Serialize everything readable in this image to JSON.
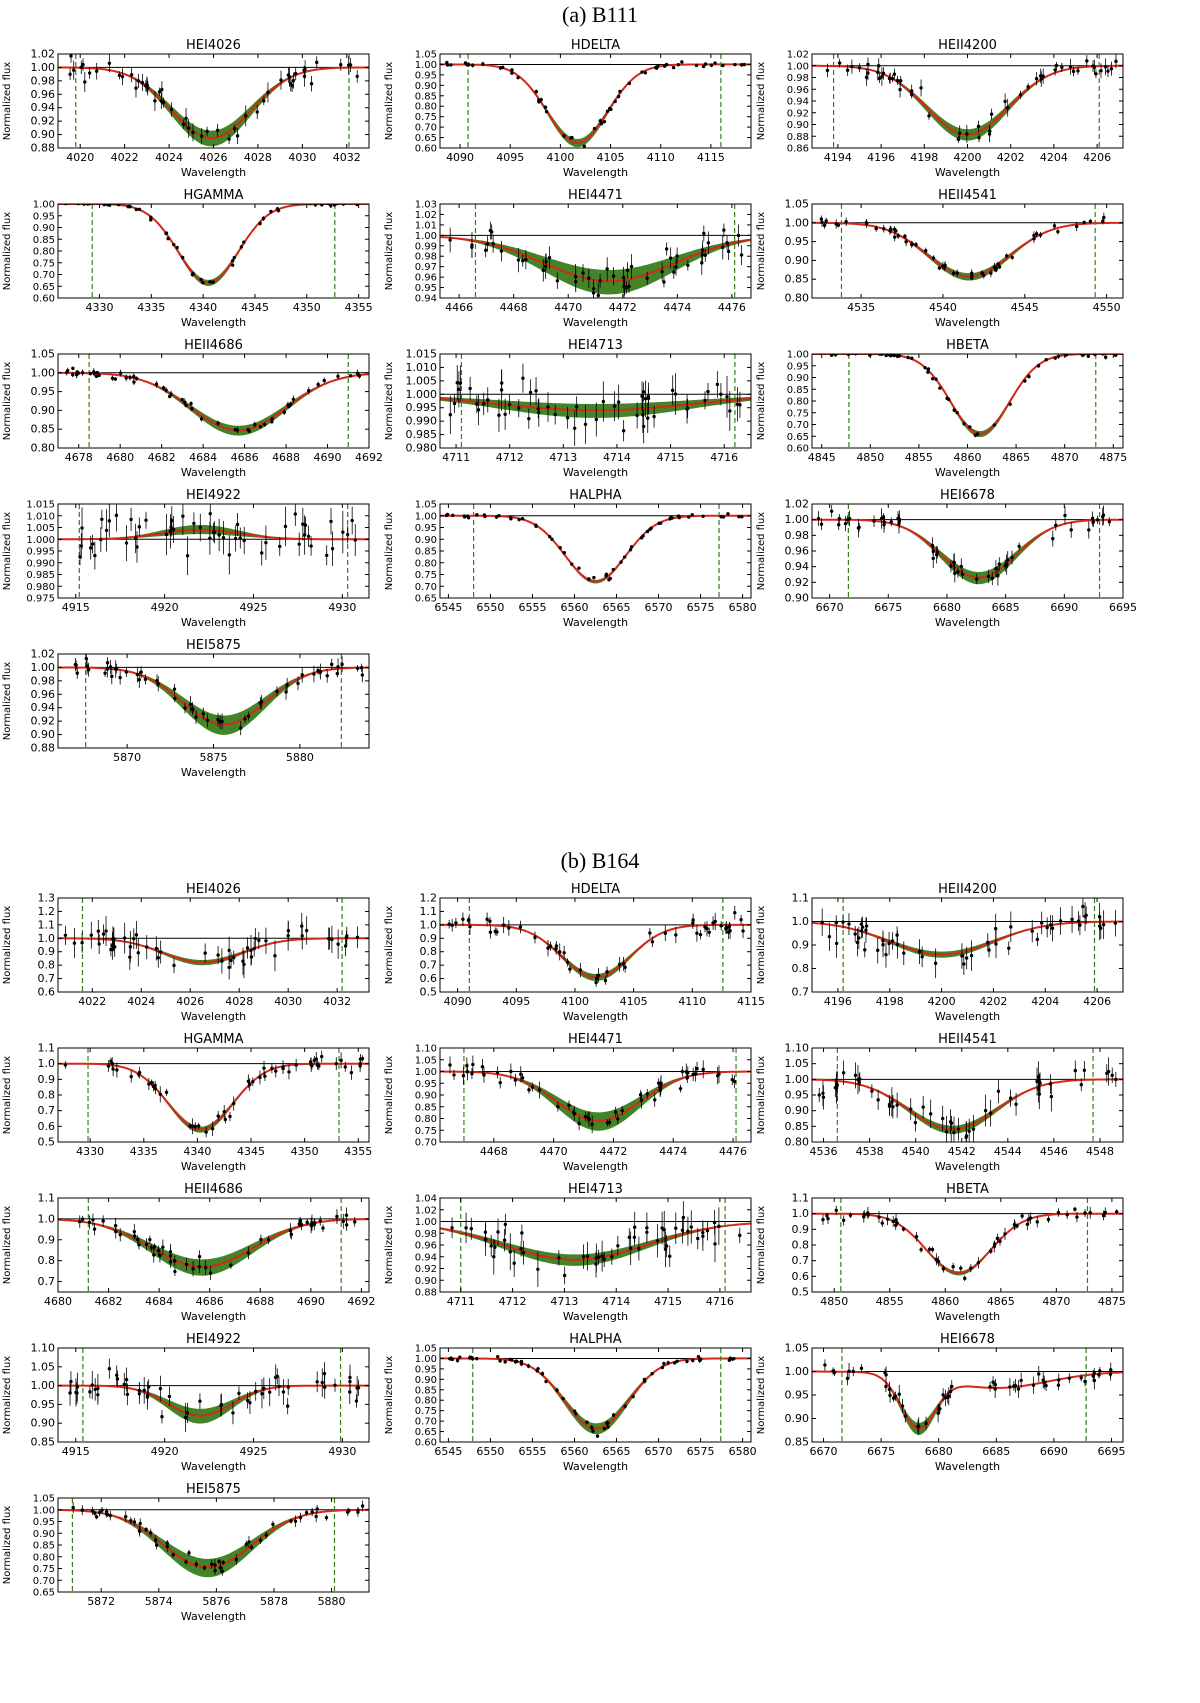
{
  "sections": [
    {
      "title": "(a) B111"
    },
    {
      "title": "(b) B164"
    }
  ],
  "common": {
    "xlabel": "Wavelength",
    "ylabel": "Normalized flux"
  },
  "colors": {
    "model_band": "#3a7d1e",
    "best_fit": "#d62718",
    "continuum": "#000000",
    "limit_line": "#3a7d1e",
    "data": "#000000"
  },
  "chart_data": [
    {
      "type": "line",
      "section": "(a) B111",
      "title": "HEI4026",
      "xlabel": "Wavelength",
      "ylabel": "Normalized flux",
      "xlim": [
        4019,
        4033
      ],
      "xticks": [
        4020,
        4022,
        4024,
        4026,
        4028,
        4030,
        4032
      ],
      "ylim": [
        0.88,
        1.02
      ],
      "yticks": [
        "0.88",
        "0.90",
        "0.92",
        "0.94",
        "0.96",
        "0.98",
        "1.00",
        "1.02"
      ],
      "center": 4025.9,
      "depth": 0.105,
      "sigma": 1.8,
      "band": 0.018,
      "vlines": [
        4019.8,
        4032.1
      ],
      "noise": 0.012,
      "seed": 11
    },
    {
      "type": "line",
      "section": "(a) B111",
      "title": "HDELTA",
      "xlabel": "Wavelength",
      "ylabel": "Normalized flux",
      "xlim": [
        4088,
        4119
      ],
      "xticks": [
        4090,
        4095,
        4100,
        4105,
        4110,
        4115
      ],
      "ylim": [
        0.6,
        1.05
      ],
      "yticks": [
        "0.60",
        "0.65",
        "0.70",
        "0.75",
        "0.80",
        "0.85",
        "0.90",
        "0.95",
        "1.00",
        "1.05"
      ],
      "center": 4101.7,
      "depth": 0.375,
      "sigma": 3.0,
      "band": 0.03,
      "vlines": [
        4090.8,
        4116.0
      ],
      "noise": 0.008,
      "seed": 12
    },
    {
      "type": "line",
      "section": "(a) B111",
      "title": "HEII4200",
      "xlabel": "Wavelength",
      "ylabel": "Normalized flux",
      "xlim": [
        4192.8,
        4207.2
      ],
      "xticks": [
        4194,
        4196,
        4198,
        4200,
        4202,
        4204,
        4206
      ],
      "ylim": [
        0.86,
        1.02
      ],
      "yticks": [
        "0.86",
        "0.88",
        "0.90",
        "0.92",
        "0.94",
        "0.96",
        "0.98",
        "1.00",
        "1.02"
      ],
      "center": 4200.0,
      "depth": 0.117,
      "sigma": 1.9,
      "band": 0.015,
      "vlines": [
        4193.8,
        4206.1
      ],
      "noise": 0.012,
      "seed": 13
    },
    {
      "type": "line",
      "section": "(a) B111",
      "title": "HGAMMA",
      "xlabel": "Wavelength",
      "ylabel": "Normalized flux",
      "xlim": [
        4326,
        4356
      ],
      "xticks": [
        4330,
        4335,
        4340,
        4345,
        4350,
        4355
      ],
      "ylim": [
        0.6,
        1.0
      ],
      "yticks": [
        "0.60",
        "0.65",
        "0.70",
        "0.75",
        "0.80",
        "0.85",
        "0.90",
        "0.95",
        "1.00"
      ],
      "center": 4340.5,
      "depth": 0.335,
      "sigma": 2.9,
      "band": 0.02,
      "vlines": [
        4329.3,
        4352.7
      ],
      "noise": 0.008,
      "seed": 14
    },
    {
      "type": "line",
      "section": "(a) B111",
      "title": "HEI4471",
      "xlabel": "Wavelength",
      "ylabel": "Normalized flux",
      "xlim": [
        4465.3,
        4476.7
      ],
      "xticks": [
        4466,
        4468,
        4470,
        4472,
        4474,
        4476
      ],
      "ylim": [
        0.94,
        1.03
      ],
      "yticks": [
        "0.94",
        "0.95",
        "0.96",
        "0.97",
        "0.98",
        "0.99",
        "1.00",
        "1.01",
        "1.02",
        "1.03"
      ],
      "center": 4471.5,
      "depth": 0.044,
      "sigma": 2.4,
      "band": 0.018,
      "vlines": [
        4466.6,
        4476.1
      ],
      "noise": 0.01,
      "seed": 15
    },
    {
      "type": "line",
      "section": "(a) B111",
      "title": "HEII4541",
      "xlabel": "Wavelength",
      "ylabel": "Normalized flux",
      "xlim": [
        4532,
        4551
      ],
      "xticks": [
        4535,
        4540,
        4545,
        4550
      ],
      "ylim": [
        0.8,
        1.05
      ],
      "yticks": [
        "0.80",
        "0.85",
        "0.90",
        "0.95",
        "1.00",
        "1.05"
      ],
      "center": 4541.6,
      "depth": 0.143,
      "sigma": 2.5,
      "band": 0.015,
      "vlines": [
        4533.8,
        4549.3
      ],
      "noise": 0.01,
      "seed": 16
    },
    {
      "type": "line",
      "section": "(a) B111",
      "title": "HEII4686",
      "xlabel": "Wavelength",
      "ylabel": "Normalized flux",
      "xlim": [
        4677,
        4692
      ],
      "xticks": [
        4678,
        4680,
        4682,
        4684,
        4686,
        4688,
        4690,
        4692
      ],
      "ylim": [
        0.8,
        1.05
      ],
      "yticks": [
        "0.80",
        "0.85",
        "0.90",
        "0.95",
        "1.00",
        "1.05"
      ],
      "center": 4685.7,
      "depth": 0.153,
      "sigma": 2.3,
      "band": 0.02,
      "vlines": [
        4678.5,
        4691.0
      ],
      "noise": 0.008,
      "seed": 17
    },
    {
      "type": "line",
      "section": "(a) B111",
      "title": "HEI4713",
      "xlabel": "Wavelength",
      "ylabel": "Normalized flux",
      "xlim": [
        4710.7,
        4716.5
      ],
      "xticks": [
        4711,
        4712,
        4713,
        4714,
        4715,
        4716
      ],
      "ylim": [
        0.98,
        1.015
      ],
      "yticks": [
        "0.980",
        "0.985",
        "0.990",
        "0.995",
        "1.000",
        "1.005",
        "1.010",
        "1.015"
      ],
      "center": 4713.6,
      "depth": 0.006,
      "sigma": 1.8,
      "band": 0.004,
      "vlines": [
        4711.1,
        4716.2
      ],
      "noise": 0.006,
      "seed": 18
    },
    {
      "type": "line",
      "section": "(a) B111",
      "title": "HBETA",
      "xlabel": "Wavelength",
      "ylabel": "Normalized flux",
      "xlim": [
        4844,
        4876
      ],
      "xticks": [
        4845,
        4850,
        4855,
        4860,
        4865,
        4870,
        4875
      ],
      "ylim": [
        0.6,
        1.0
      ],
      "yticks": [
        "0.60",
        "0.65",
        "0.70",
        "0.75",
        "0.80",
        "0.85",
        "0.90",
        "0.95",
        "1.00"
      ],
      "center": 4861.3,
      "depth": 0.34,
      "sigma": 3.0,
      "band": 0.02,
      "vlines": [
        4847.8,
        4873.2
      ],
      "noise": 0.008,
      "seed": 19
    },
    {
      "type": "line",
      "section": "(a) B111",
      "title": "HEI4922",
      "xlabel": "Wavelength",
      "ylabel": "Normalized flux",
      "xlim": [
        4914,
        4931.5
      ],
      "xticks": [
        4915,
        4920,
        4925,
        4930
      ],
      "ylim": [
        0.975,
        1.015
      ],
      "yticks": [
        "0.975",
        "0.980",
        "0.985",
        "0.990",
        "0.995",
        "1.000",
        "1.005",
        "1.010",
        "1.015"
      ],
      "center": 4922.0,
      "depth": -0.004,
      "sigma": 2.2,
      "band": 0.003,
      "vlines": [
        4915.2,
        4930.3
      ],
      "noise": 0.007,
      "seed": 20
    },
    {
      "type": "line",
      "section": "(a) B111",
      "title": "HALPHA",
      "xlabel": "Wavelength",
      "ylabel": "Normalized flux",
      "xlim": [
        6544,
        6581
      ],
      "xticks": [
        6545,
        6550,
        6555,
        6560,
        6565,
        6570,
        6575,
        6580
      ],
      "ylim": [
        0.65,
        1.05
      ],
      "yticks": [
        "0.65",
        "0.70",
        "0.75",
        "0.80",
        "0.85",
        "0.90",
        "0.95",
        "1.00",
        "1.05"
      ],
      "center": 6562.5,
      "depth": 0.28,
      "sigma": 3.6,
      "band": 0.012,
      "vlines": [
        6548.0,
        6577.2
      ],
      "noise": 0.006,
      "seed": 21
    },
    {
      "type": "line",
      "section": "(a) B111",
      "title": "HEI6678",
      "xlabel": "Wavelength",
      "ylabel": "Normalized flux",
      "xlim": [
        6668.5,
        6695
      ],
      "xticks": [
        6670,
        6675,
        6680,
        6685,
        6690,
        6695
      ],
      "ylim": [
        0.9,
        1.02
      ],
      "yticks": [
        "0.90",
        "0.92",
        "0.94",
        "0.96",
        "0.98",
        "1.00",
        "1.02"
      ],
      "center": 6682.7,
      "depth": 0.074,
      "sigma": 3.2,
      "band": 0.012,
      "vlines": [
        6671.6,
        6693.0
      ],
      "noise": 0.01,
      "seed": 22
    },
    {
      "type": "line",
      "section": "(a) B111",
      "title": "HEI5875",
      "xlabel": "Wavelength",
      "ylabel": "Normalized flux",
      "xlim": [
        5866,
        5884
      ],
      "xticks": [
        5870,
        5875,
        5880
      ],
      "ylim": [
        0.88,
        1.02
      ],
      "yticks": [
        "0.88",
        "0.90",
        "0.92",
        "0.94",
        "0.96",
        "0.98",
        "1.00",
        "1.02"
      ],
      "center": 5875.6,
      "depth": 0.085,
      "sigma": 2.4,
      "band": 0.022,
      "vlines": [
        5867.6,
        5882.4
      ],
      "noise": 0.01,
      "seed": 23
    },
    {
      "type": "line",
      "section": "(b) B164",
      "title": "HEI4026",
      "xlabel": "Wavelength",
      "ylabel": "Normalized flux",
      "xlim": [
        4020.6,
        4033.3
      ],
      "xticks": [
        4022,
        4024,
        4026,
        4028,
        4030,
        4032
      ],
      "ylim": [
        0.6,
        1.3
      ],
      "yticks": [
        "0.6",
        "0.7",
        "0.8",
        "0.9",
        "1.0",
        "1.1",
        "1.2",
        "1.3"
      ],
      "center": 4026.5,
      "depth": 0.18,
      "sigma": 1.6,
      "band": 0.03,
      "vlines": [
        4021.6,
        4032.2
      ],
      "noise": 0.09,
      "seed": 31
    },
    {
      "type": "line",
      "section": "(b) B164",
      "title": "HDELTA",
      "xlabel": "Wavelength",
      "ylabel": "Normalized flux",
      "xlim": [
        4088.5,
        4115
      ],
      "xticks": [
        4090,
        4095,
        4100,
        4105,
        4110,
        4115
      ],
      "ylim": [
        0.5,
        1.2
      ],
      "yticks": [
        "0.5",
        "0.6",
        "0.7",
        "0.8",
        "0.9",
        "1.0",
        "1.1",
        "1.2"
      ],
      "center": 4101.8,
      "depth": 0.39,
      "sigma": 2.9,
      "band": 0.04,
      "vlines": [
        4091.0,
        4112.6
      ],
      "noise": 0.05,
      "seed": 32
    },
    {
      "type": "line",
      "section": "(b) B164",
      "title": "HEII4200",
      "xlabel": "Wavelength",
      "ylabel": "Normalized flux",
      "xlim": [
        4195,
        4207
      ],
      "xticks": [
        4196,
        4198,
        4200,
        4202,
        4204,
        4206
      ],
      "ylim": [
        0.7,
        1.1
      ],
      "yticks": [
        "0.7",
        "0.8",
        "0.9",
        "1.0",
        "1.1"
      ],
      "center": 4200.0,
      "depth": 0.14,
      "sigma": 2.0,
      "band": 0.02,
      "vlines": [
        4196.2,
        4205.9
      ],
      "noise": 0.05,
      "seed": 33
    },
    {
      "type": "line",
      "section": "(b) B164",
      "title": "HGAMMA",
      "xlabel": "Wavelength",
      "ylabel": "Normalized flux",
      "xlim": [
        4327,
        4356
      ],
      "xticks": [
        4330,
        4335,
        4340,
        4345,
        4350,
        4355
      ],
      "ylim": [
        0.5,
        1.1
      ],
      "yticks": [
        "0.5",
        "0.6",
        "0.7",
        "0.8",
        "0.9",
        "1.0",
        "1.1"
      ],
      "center": 4340.3,
      "depth": 0.42,
      "sigma": 3.0,
      "band": 0.03,
      "vlines": [
        4329.8,
        4353.2
      ],
      "noise": 0.04,
      "seed": 34
    },
    {
      "type": "line",
      "section": "(b) B164",
      "title": "HEI4471",
      "xlabel": "Wavelength",
      "ylabel": "Normalized flux",
      "xlim": [
        4466.2,
        4476.6
      ],
      "xticks": [
        4468,
        4470,
        4472,
        4474,
        4476
      ],
      "ylim": [
        0.7,
        1.1
      ],
      "yticks": [
        "0.70",
        "0.75",
        "0.80",
        "0.85",
        "0.90",
        "0.95",
        "1.00",
        "1.05",
        "1.10"
      ],
      "center": 4471.5,
      "depth": 0.21,
      "sigma": 1.4,
      "band": 0.06,
      "vlines": [
        4467.0,
        4476.1
      ],
      "noise": 0.03,
      "seed": 35
    },
    {
      "type": "line",
      "section": "(b) B164",
      "title": "HEII4541",
      "xlabel": "Wavelength",
      "ylabel": "Normalized flux",
      "xlim": [
        4535.5,
        4549
      ],
      "xticks": [
        4536,
        4538,
        4540,
        4542,
        4544,
        4546,
        4548
      ],
      "ylim": [
        0.8,
        1.1
      ],
      "yticks": [
        "0.80",
        "0.85",
        "0.90",
        "0.95",
        "1.00",
        "1.05",
        "1.10"
      ],
      "center": 4541.6,
      "depth": 0.16,
      "sigma": 1.9,
      "band": 0.02,
      "vlines": [
        4536.6,
        4547.7
      ],
      "noise": 0.04,
      "seed": 36
    },
    {
      "type": "line",
      "section": "(b) B164",
      "title": "HEII4686",
      "xlabel": "Wavelength",
      "ylabel": "Normalized flux",
      "xlim": [
        4680,
        4692.3
      ],
      "xticks": [
        4680,
        4682,
        4684,
        4686,
        4688,
        4690,
        4692
      ],
      "ylim": [
        0.65,
        1.1
      ],
      "yticks": [
        "0.7",
        "0.8",
        "0.9",
        "1.0",
        "1.1"
      ],
      "center": 4685.7,
      "depth": 0.23,
      "sigma": 2.0,
      "band": 0.06,
      "vlines": [
        4681.2,
        4691.2
      ],
      "noise": 0.03,
      "seed": 37
    },
    {
      "type": "line",
      "section": "(b) B164",
      "title": "HEI4713",
      "xlabel": "Wavelength",
      "ylabel": "Normalized flux",
      "xlim": [
        4710.6,
        4716.6
      ],
      "xticks": [
        4711,
        4712,
        4713,
        4714,
        4715,
        4716
      ],
      "ylim": [
        0.88,
        1.04
      ],
      "yticks": [
        "0.88",
        "0.90",
        "0.92",
        "0.94",
        "0.96",
        "0.98",
        "1.00",
        "1.02",
        "1.04"
      ],
      "center": 4713.2,
      "depth": 0.065,
      "sigma": 1.4,
      "band": 0.015,
      "vlines": [
        4711.0,
        4716.1
      ],
      "noise": 0.025,
      "seed": 38
    },
    {
      "type": "line",
      "section": "(b) B164",
      "title": "HBETA",
      "xlabel": "Wavelength",
      "ylabel": "Normalized flux",
      "xlim": [
        4848,
        4876
      ],
      "xticks": [
        4850,
        4855,
        4860,
        4865,
        4870,
        4875
      ],
      "ylim": [
        0.5,
        1.1
      ],
      "yticks": [
        "0.5",
        "0.6",
        "0.7",
        "0.8",
        "0.9",
        "1.0",
        "1.1"
      ],
      "center": 4861.2,
      "depth": 0.38,
      "sigma": 2.9,
      "band": 0.02,
      "vlines": [
        4850.6,
        4872.8
      ],
      "noise": 0.03,
      "seed": 39
    },
    {
      "type": "line",
      "section": "(b) B164",
      "title": "HEI4922",
      "xlabel": "Wavelength",
      "ylabel": "Normalized flux",
      "xlim": [
        4914,
        4931.5
      ],
      "xticks": [
        4915,
        4920,
        4925,
        4930
      ],
      "ylim": [
        0.85,
        1.1
      ],
      "yticks": [
        "0.85",
        "0.90",
        "0.95",
        "1.00",
        "1.05",
        "1.10"
      ],
      "center": 4922.0,
      "depth": 0.08,
      "sigma": 1.8,
      "band": 0.03,
      "vlines": [
        4915.4,
        4929.9
      ],
      "noise": 0.03,
      "seed": 40
    },
    {
      "type": "line",
      "section": "(b) B164",
      "title": "HALPHA",
      "xlabel": "Wavelength",
      "ylabel": "Normalized flux",
      "xlim": [
        6544,
        6581
      ],
      "xticks": [
        6545,
        6550,
        6555,
        6560,
        6565,
        6570,
        6575,
        6580
      ],
      "ylim": [
        0.6,
        1.05
      ],
      "yticks": [
        "0.60",
        "0.65",
        "0.70",
        "0.75",
        "0.80",
        "0.85",
        "0.90",
        "0.95",
        "1.00",
        "1.05"
      ],
      "center": 6562.6,
      "depth": 0.335,
      "sigma": 3.8,
      "band": 0.04,
      "vlines": [
        6547.9,
        6577.4
      ],
      "noise": 0.01,
      "seed": 41
    },
    {
      "type": "line",
      "section": "(b) B164",
      "title": "HEI6678",
      "xlabel": "Wavelength",
      "ylabel": "Normalized flux",
      "xlim": [
        6669,
        6696
      ],
      "xticks": [
        6670,
        6675,
        6680,
        6685,
        6690,
        6695
      ],
      "ylim": [
        0.85,
        1.05
      ],
      "yticks": [
        "0.85",
        "0.90",
        "0.95",
        "1.00",
        "1.05"
      ],
      "center": 6678.2,
      "depth": 0.11,
      "sigma": 1.5,
      "band": 0.02,
      "vlines": [
        6671.6,
        6692.8
      ],
      "noise": 0.015,
      "seed": 42,
      "extra": {
        "center": 6685,
        "depth": 0.035,
        "sigma": 4.5
      }
    },
    {
      "type": "line",
      "section": "(b) B164",
      "title": "HEI5875",
      "xlabel": "Wavelength",
      "ylabel": "Normalized flux",
      "xlim": [
        5870.5,
        5881.3
      ],
      "xticks": [
        5872,
        5874,
        5876,
        5878,
        5880
      ],
      "ylim": [
        0.65,
        1.05
      ],
      "yticks": [
        "0.65",
        "0.70",
        "0.75",
        "0.80",
        "0.85",
        "0.90",
        "0.95",
        "1.00",
        "1.05"
      ],
      "center": 5875.7,
      "depth": 0.245,
      "sigma": 1.55,
      "band": 0.06,
      "vlines": [
        5871.0,
        5880.1
      ],
      "noise": 0.02,
      "seed": 43
    }
  ]
}
